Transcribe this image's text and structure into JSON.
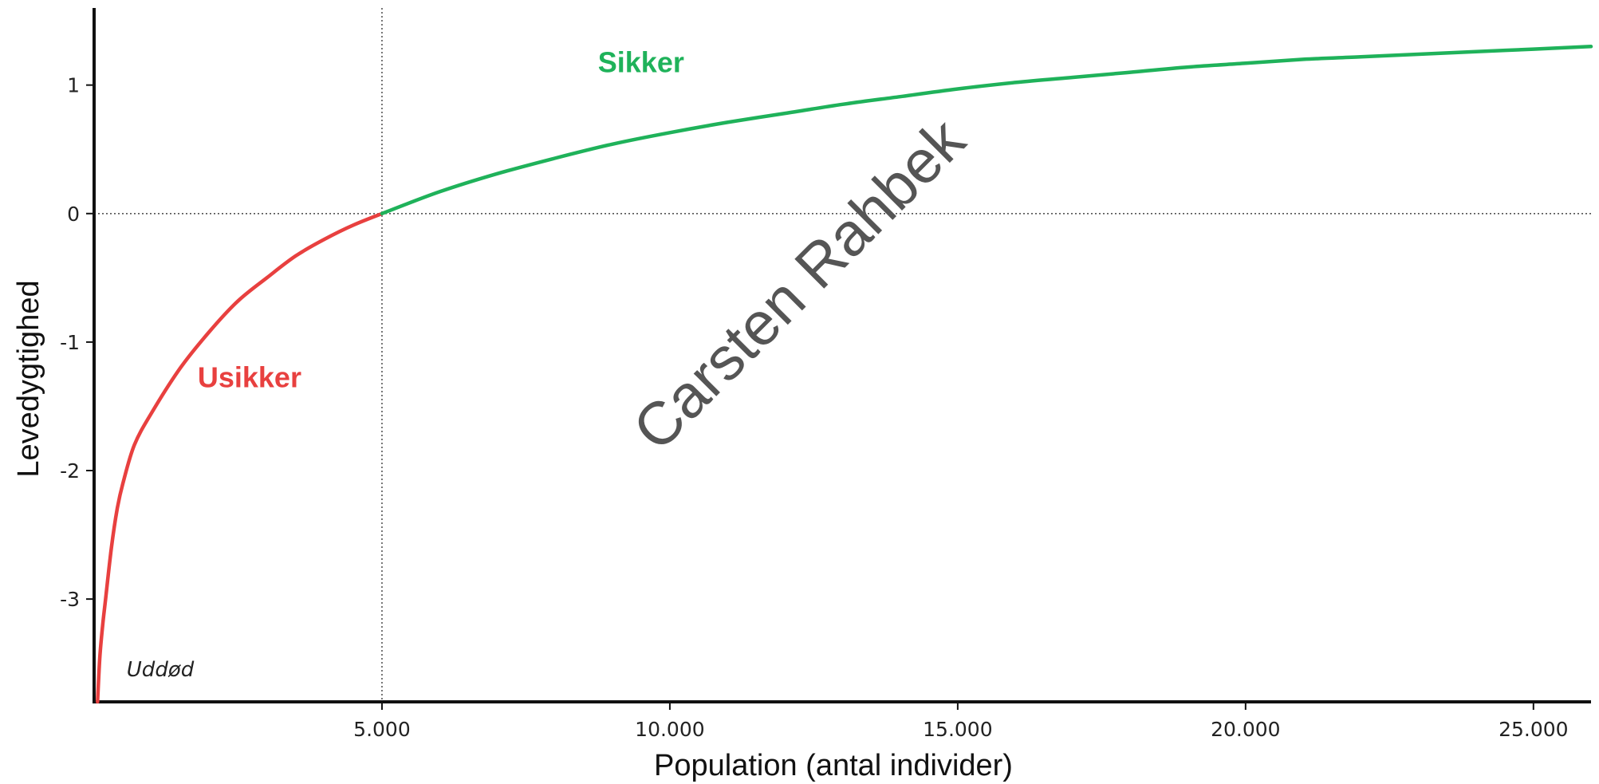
{
  "chart_data": {
    "type": "line",
    "title": "",
    "xlabel": "Population (antal individer)",
    "ylabel": "Levedygtighed",
    "xlim": [
      0,
      26000
    ],
    "ylim": [
      -3.8,
      1.6
    ],
    "xticks": [
      {
        "value": 5000,
        "label": "5.000"
      },
      {
        "value": 10000,
        "label": "10.000"
      },
      {
        "value": 15000,
        "label": "15.000"
      },
      {
        "value": 20000,
        "label": "20.000"
      },
      {
        "value": 25000,
        "label": "25.000"
      }
    ],
    "yticks": [
      {
        "value": 1,
        "label": "1"
      },
      {
        "value": 0,
        "label": "0"
      },
      {
        "value": -1,
        "label": "-1"
      },
      {
        "value": -2,
        "label": "-2"
      },
      {
        "value": -3,
        "label": "-3"
      }
    ],
    "reference_lines": {
      "x": 5000,
      "y": 0
    },
    "grid": false,
    "series": [
      {
        "color": "#e8403f",
        "x": [
          60,
          100,
          150,
          200,
          300,
          400,
          500,
          700,
          1000,
          1500,
          2000,
          2500,
          3000,
          3500,
          4000,
          4500,
          5000
        ],
        "y": [
          -3.8,
          -3.45,
          -3.2,
          -3.0,
          -2.6,
          -2.3,
          -2.1,
          -1.8,
          -1.55,
          -1.2,
          -0.92,
          -0.68,
          -0.5,
          -0.33,
          -0.2,
          -0.09,
          0.0
        ]
      },
      {
        "color": "#1fb25a",
        "x": [
          5000,
          6000,
          7000,
          8000,
          9000,
          10000,
          11000,
          12000,
          13000,
          14000,
          15000,
          16000,
          17000,
          18000,
          19000,
          20000,
          21000,
          22000,
          23000,
          24000,
          25000,
          26000
        ],
        "y": [
          0.0,
          0.17,
          0.31,
          0.43,
          0.54,
          0.63,
          0.71,
          0.78,
          0.85,
          0.91,
          0.97,
          1.02,
          1.06,
          1.1,
          1.14,
          1.17,
          1.2,
          1.22,
          1.24,
          1.26,
          1.28,
          1.3
        ]
      }
    ],
    "annotations": [
      {
        "text": "Sikker",
        "x": 9500,
        "y": 1.1,
        "color": "#1fb25a"
      },
      {
        "text": "Usikker",
        "x": 2700,
        "y": -1.35,
        "color": "#e8403f"
      },
      {
        "text": "Uddød",
        "x": 1150,
        "y": -3.6,
        "color": "#222222"
      }
    ],
    "watermark": "Carsten Rahbek"
  }
}
